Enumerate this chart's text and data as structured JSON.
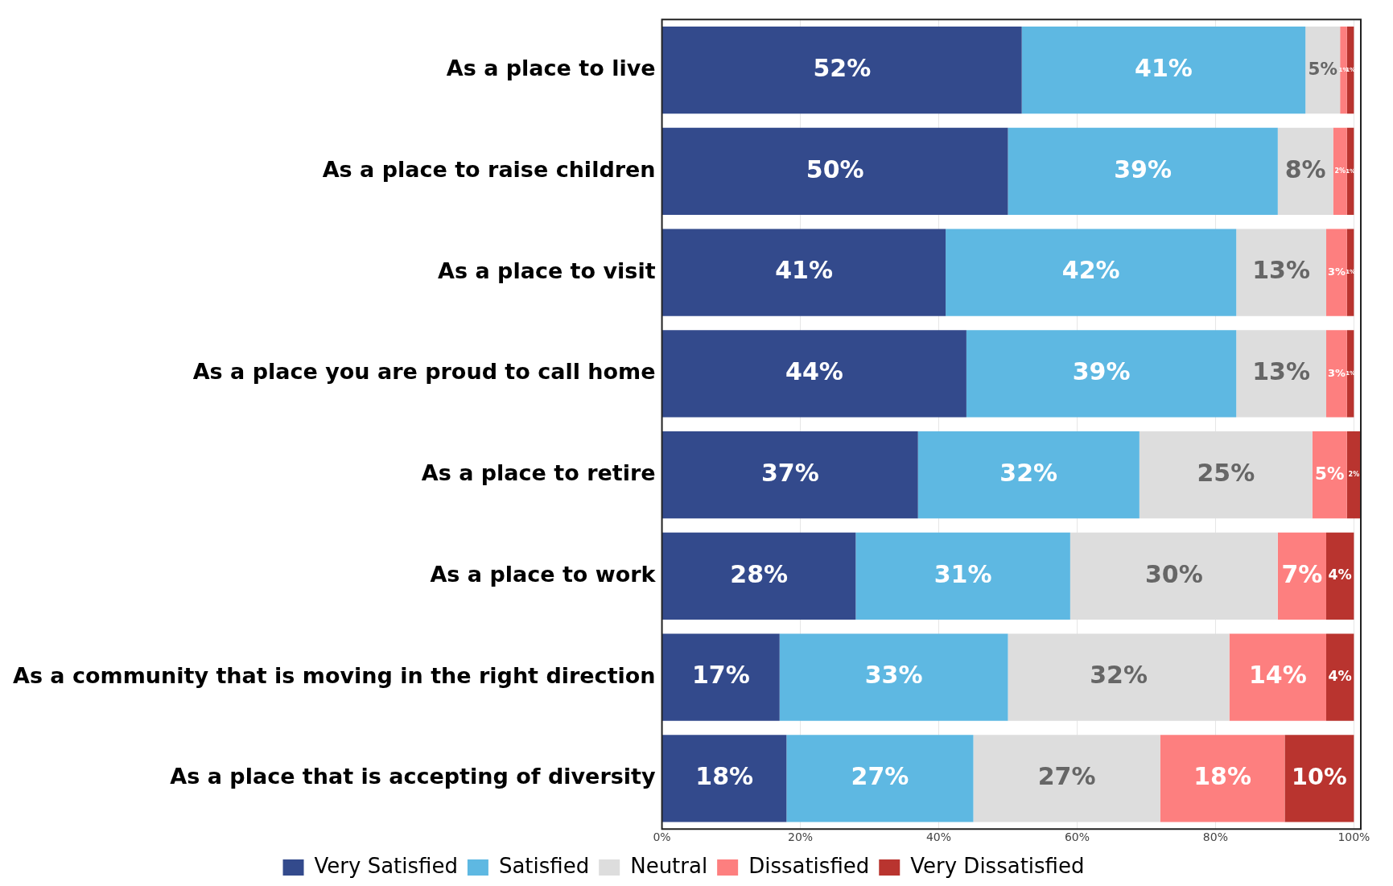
{
  "chart_data": {
    "type": "bar",
    "orientation": "horizontal",
    "stacked": true,
    "categories": [
      "As a place to live",
      "As a place to raise children",
      "As a place to visit",
      "As a place you are proud to call home",
      "As a place to retire",
      "As a place to work",
      "As a community that is moving in the right direction",
      "As a place that is accepting of diversity"
    ],
    "series": [
      {
        "name": "Very Satisfied",
        "color": "#334a8c",
        "values": [
          52,
          50,
          41,
          44,
          37,
          28,
          17,
          18
        ],
        "value_labels": [
          "52%",
          "50%",
          "41%",
          "44%",
          "37%",
          "28%",
          "17%",
          "18%"
        ]
      },
      {
        "name": "Satisfied",
        "color": "#5eb8e2",
        "values": [
          41,
          39,
          42,
          39,
          32,
          31,
          33,
          27
        ],
        "value_labels": [
          "41%",
          "39%",
          "42%",
          "39%",
          "32%",
          "31%",
          "33%",
          "27%"
        ]
      },
      {
        "name": "Neutral",
        "color": "#dddddd",
        "values": [
          5,
          8,
          13,
          13,
          25,
          30,
          32,
          27
        ],
        "value_labels": [
          "5%",
          "8%",
          "13%",
          "13%",
          "25%",
          "30%",
          "32%",
          "27%"
        ]
      },
      {
        "name": "Dissatisfied",
        "color": "#fd7f7f",
        "values": [
          1,
          2,
          3,
          3,
          5,
          7,
          14,
          18
        ],
        "value_labels": [
          "1%",
          "2%",
          "3%",
          "3%",
          "5%",
          "7%",
          "14%",
          "18%"
        ]
      },
      {
        "name": "Very Dissatisfied",
        "color": "#b9342f",
        "values": [
          1,
          1,
          1,
          1,
          2,
          4,
          4,
          10
        ],
        "value_labels": [
          "1%",
          "1%",
          "1%",
          "1%",
          "2%",
          "4%",
          "4%",
          "10%"
        ]
      }
    ],
    "xlim": [
      0,
      101
    ],
    "xticks": [
      {
        "value": 0,
        "label": "0%"
      },
      {
        "value": 20,
        "label": "20%"
      },
      {
        "value": 40,
        "label": "40%"
      },
      {
        "value": 60,
        "label": "60%"
      },
      {
        "value": 80,
        "label": "80%"
      },
      {
        "value": 100,
        "label": "100%"
      }
    ],
    "grid": "x",
    "legend": "bottom"
  }
}
